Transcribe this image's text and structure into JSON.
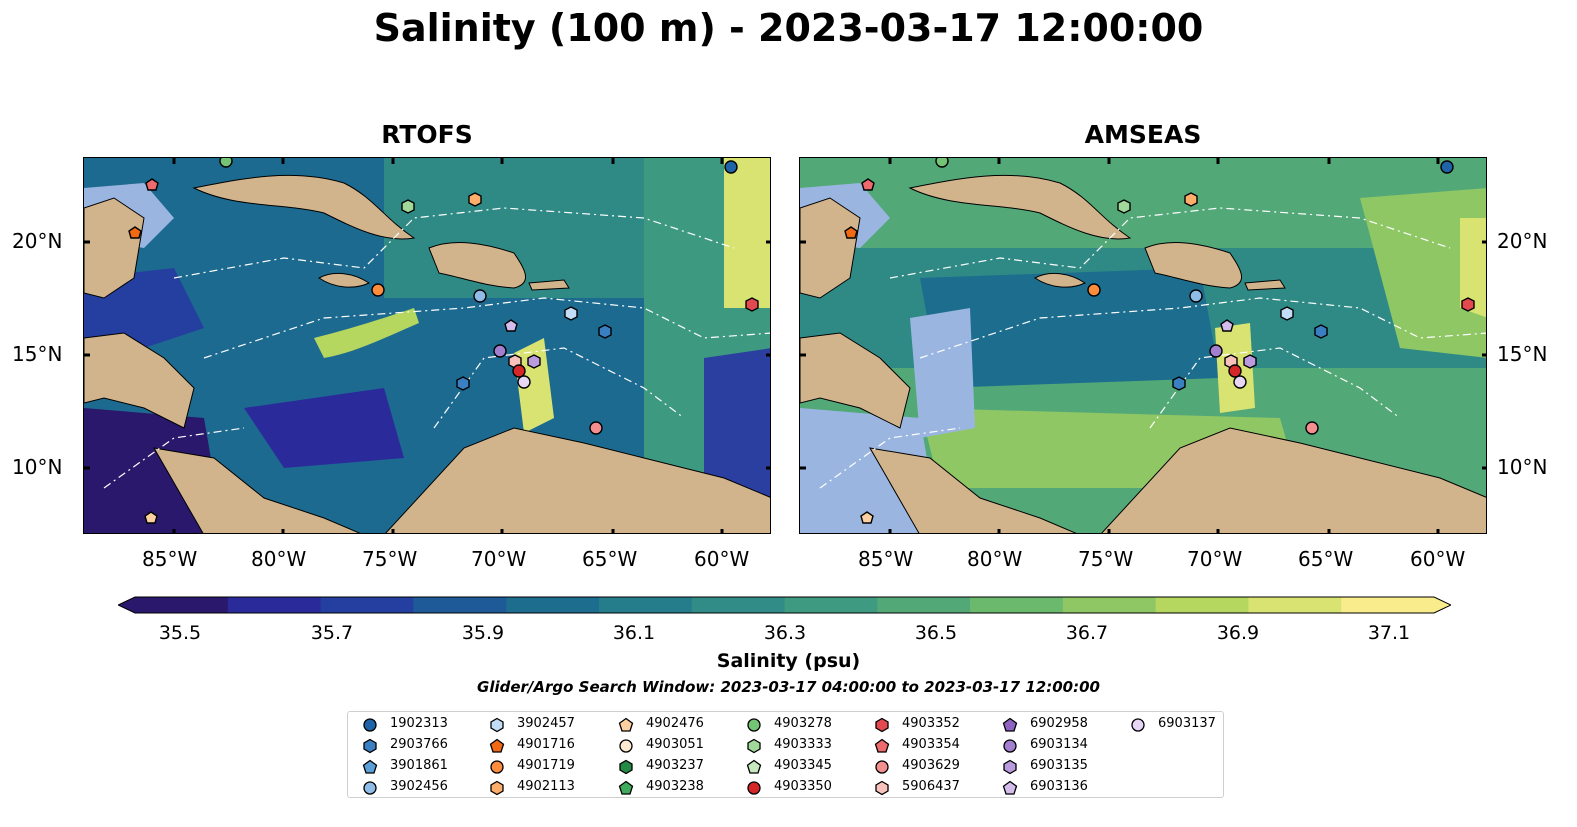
{
  "title": "Salinity (100 m) - 2023-03-17 12:00:00",
  "panels": [
    {
      "name": "RTOFS"
    },
    {
      "name": "AMSEAS"
    }
  ],
  "lat_labels": [
    "20°N",
    "15°N",
    "10°N"
  ],
  "lon_labels": [
    "85°W",
    "80°W",
    "75°W",
    "70°W",
    "65°W",
    "60°W"
  ],
  "colorbar": {
    "ticks": [
      "35.5",
      "35.7",
      "35.9",
      "36.1",
      "36.3",
      "36.5",
      "36.7",
      "36.9",
      "37.1"
    ],
    "label": "Salinity (psu)",
    "min": 35.5,
    "max": 37.1,
    "colors": [
      "#29186b",
      "#2a2a9a",
      "#243f9f",
      "#1d5a97",
      "#1d6d8f",
      "#257c8a",
      "#318b86",
      "#3e9a80",
      "#53a878",
      "#6ab96d",
      "#8ec764",
      "#b5d65f",
      "#d9e372",
      "#f9ec8c"
    ]
  },
  "search_window": "Glider/Argo Search Window: 2023-03-17 04:00:00 to 2023-03-17 12:00:00",
  "land_color": "#d2b48c",
  "shelf_color": "#9ab6e0",
  "legend": [
    {
      "id": "1902313",
      "marker": "circle",
      "color": "#1f63a8"
    },
    {
      "id": "2903766",
      "marker": "hexagon",
      "color": "#3a7fc1"
    },
    {
      "id": "3901861",
      "marker": "pentagon",
      "color": "#5a9fd8"
    },
    {
      "id": "3902456",
      "marker": "circle",
      "color": "#90bde8"
    },
    {
      "id": "3902457",
      "marker": "hexagon",
      "color": "#c2ddf5"
    },
    {
      "id": "4901716",
      "marker": "pentagon",
      "color": "#f16913"
    },
    {
      "id": "4901719",
      "marker": "circle",
      "color": "#fd8d3c"
    },
    {
      "id": "4902113",
      "marker": "hexagon",
      "color": "#fdae6b"
    },
    {
      "id": "4902476",
      "marker": "pentagon",
      "color": "#fdd0a2"
    },
    {
      "id": "4903051",
      "marker": "circle",
      "color": "#feead0"
    },
    {
      "id": "4903237",
      "marker": "hexagon",
      "color": "#238b45"
    },
    {
      "id": "4903238",
      "marker": "pentagon",
      "color": "#41ab5d"
    },
    {
      "id": "4903278",
      "marker": "circle",
      "color": "#74c476"
    },
    {
      "id": "4903333",
      "marker": "hexagon",
      "color": "#a1d99b"
    },
    {
      "id": "4903345",
      "marker": "pentagon",
      "color": "#c7e9c0"
    },
    {
      "id": "4903350",
      "marker": "circle",
      "color": "#d62728"
    },
    {
      "id": "4903352",
      "marker": "hexagon",
      "color": "#e34a4f"
    },
    {
      "id": "4903354",
      "marker": "pentagon",
      "color": "#ee6a6c"
    },
    {
      "id": "4903629",
      "marker": "circle",
      "color": "#f3908f"
    },
    {
      "id": "5906437",
      "marker": "hexagon",
      "color": "#f8c1bc"
    },
    {
      "id": "6902958",
      "marker": "pentagon",
      "color": "#8e63c2"
    },
    {
      "id": "6903134",
      "marker": "circle",
      "color": "#a37fd0"
    },
    {
      "id": "6903135",
      "marker": "hexagon",
      "color": "#bb9be0"
    },
    {
      "id": "6903136",
      "marker": "pentagon",
      "color": "#d4bced"
    },
    {
      "id": "6903137",
      "marker": "circle",
      "color": "#e7d6f6"
    }
  ]
}
